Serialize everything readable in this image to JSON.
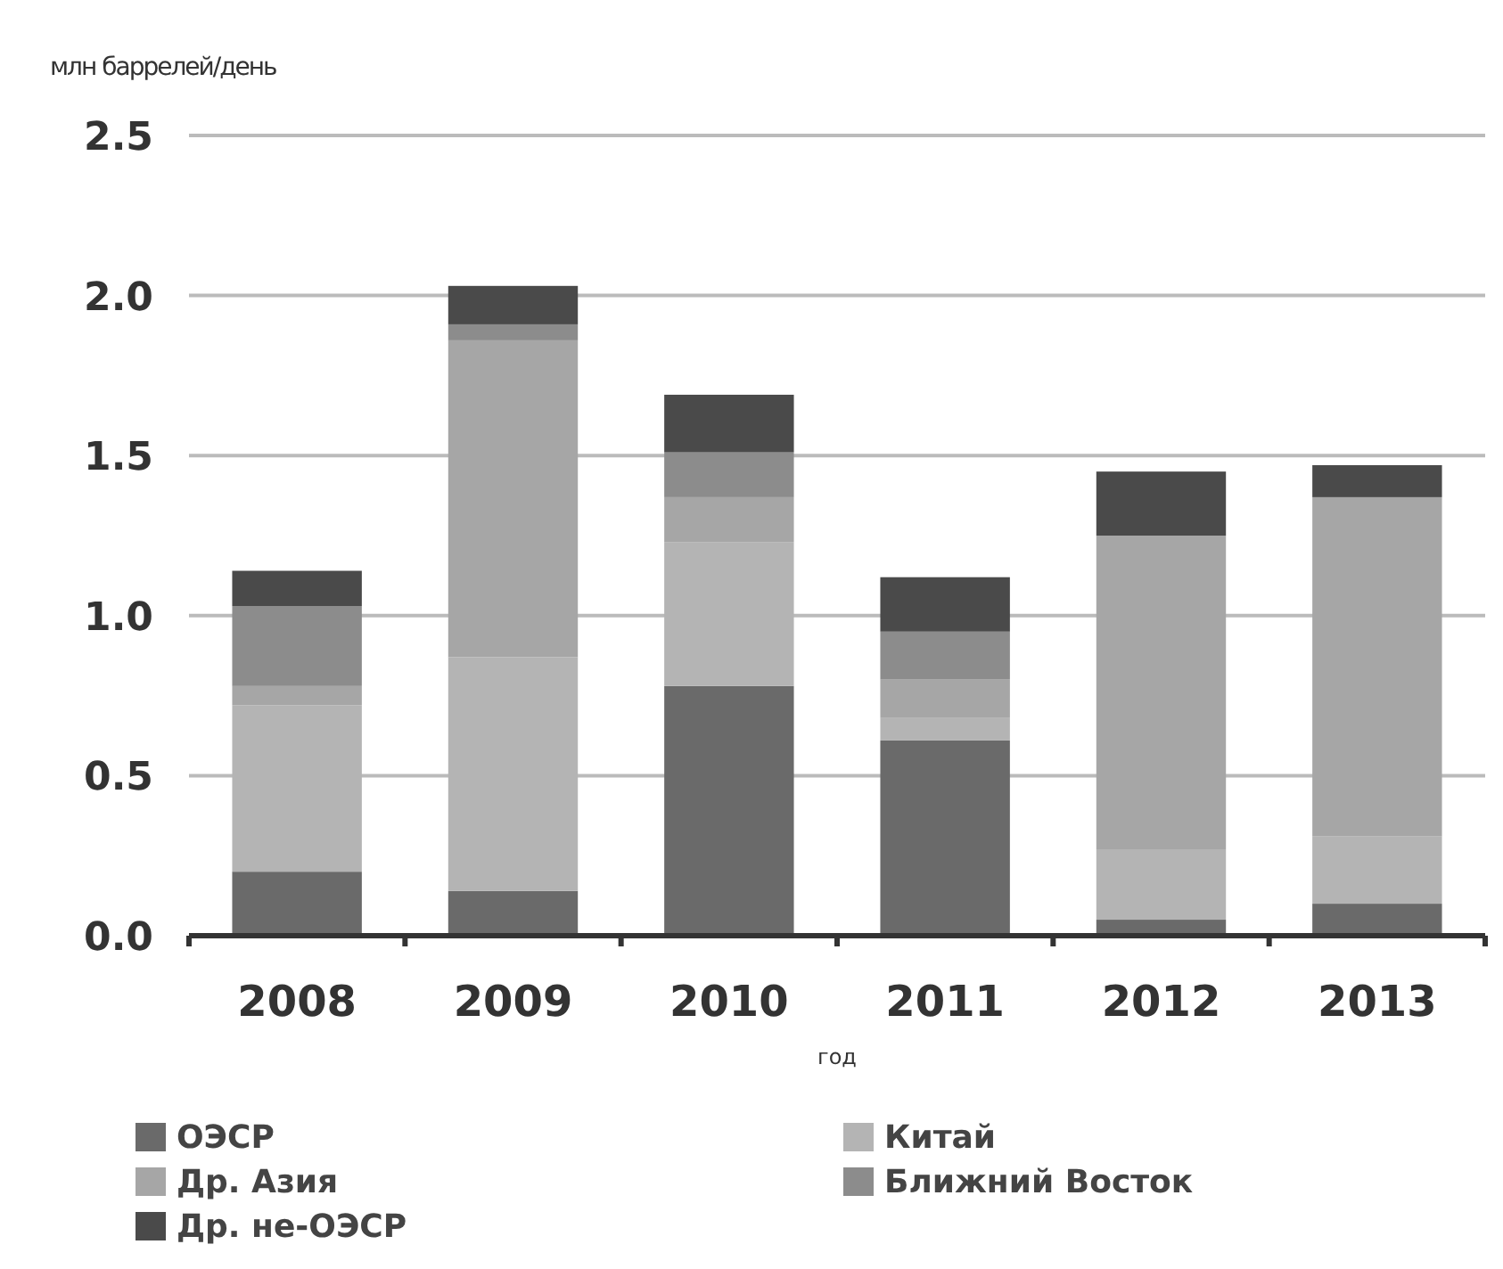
{
  "chart_data": {
    "type": "bar",
    "stacked": true,
    "ylabel": "млн баррелей/день",
    "xlabel": "год",
    "categories": [
      "2008",
      "2009",
      "2010",
      "2011",
      "2012",
      "2013"
    ],
    "series": [
      {
        "name": "ОЭСР",
        "color": "#6a6a6a",
        "values": [
          0.2,
          0.14,
          0.78,
          0.61,
          0.05,
          0.1
        ]
      },
      {
        "name": "Китай",
        "color": "#b4b4b4",
        "values": [
          0.52,
          0.73,
          0.45,
          0.07,
          0.22,
          0.21
        ]
      },
      {
        "name": "Др. Азия",
        "color": "#a6a6a6",
        "values": [
          0.06,
          0.99,
          0.14,
          0.12,
          0.98,
          1.06
        ]
      },
      {
        "name": "Ближний Восток",
        "color": "#8c8c8c",
        "values": [
          0.25,
          0.05,
          0.14,
          0.15,
          0,
          0
        ]
      },
      {
        "name": "Др. не-ОЭСР",
        "color": "#4a4a4a",
        "values": [
          0.11,
          0.12,
          0.18,
          0.17,
          0.2,
          0.1
        ]
      }
    ],
    "ylim": [
      0,
      2.5
    ],
    "yticks": [
      {
        "value": 0,
        "label": "0.0"
      },
      {
        "value": 0.5,
        "label": "0.5"
      },
      {
        "value": 1,
        "label": "1.0"
      },
      {
        "value": 1.5,
        "label": "1.5"
      },
      {
        "value": 2,
        "label": "2.0"
      },
      {
        "value": 2.5,
        "label": "2.5"
      }
    ],
    "grid": "y",
    "legend": "bottom"
  }
}
